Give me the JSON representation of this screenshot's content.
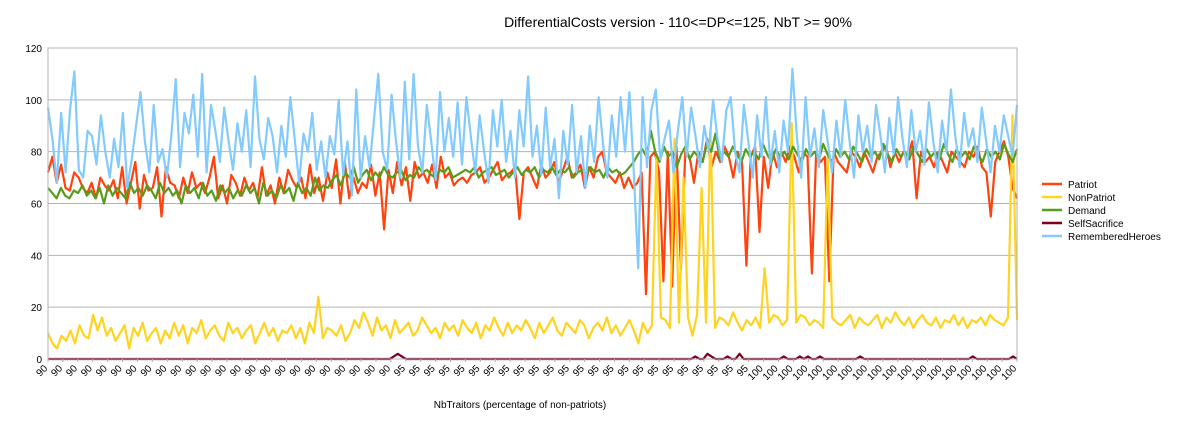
{
  "chart_data": {
    "type": "line",
    "title": "DifferentialCosts version - 110<=DP<=125, NbT >= 90%",
    "xlabel": "NbTraitors (percentage of non-patriots)",
    "ylabel": "",
    "ylim": [
      0,
      120
    ],
    "yticks": [
      0,
      20,
      40,
      60,
      80,
      100,
      120
    ],
    "grid": true,
    "legend_position": "right",
    "x_tick_labels": [
      "90",
      "90",
      "90",
      "90",
      "90",
      "90",
      "90",
      "90",
      "90",
      "90",
      "90",
      "90",
      "90",
      "90",
      "90",
      "90",
      "90",
      "90",
      "90",
      "90",
      "90",
      "90",
      "90",
      "90",
      "95",
      "95",
      "95",
      "95",
      "95",
      "95",
      "95",
      "95",
      "95",
      "95",
      "95",
      "95",
      "95",
      "95",
      "95",
      "95",
      "95",
      "95",
      "95",
      "95",
      "95",
      "95",
      "95",
      "95",
      "100",
      "100",
      "100",
      "100",
      "100",
      "100",
      "100",
      "100",
      "100",
      "100",
      "100",
      "100",
      "100",
      "100",
      "100",
      "100",
      "100",
      "100"
    ],
    "x_range": [
      90,
      100
    ],
    "series": [
      {
        "name": "Patriot",
        "color": "#ff420e",
        "values": [
          72,
          78,
          68,
          75,
          66,
          65,
          72,
          70,
          66,
          64,
          68,
          62,
          70,
          67,
          65,
          69,
          62,
          74,
          60,
          68,
          76,
          58,
          71,
          65,
          66,
          74,
          55,
          74,
          68,
          67,
          62,
          70,
          64,
          72,
          66,
          68,
          64,
          70,
          78,
          62,
          67,
          60,
          71,
          68,
          63,
          70,
          65,
          68,
          62,
          74,
          63,
          67,
          60,
          70,
          64,
          73,
          69,
          66,
          70,
          62,
          75,
          64,
          70,
          61,
          72,
          66,
          77,
          60,
          76,
          62,
          70,
          64,
          68,
          66,
          75,
          63,
          72,
          50,
          73,
          64,
          76,
          67,
          74,
          61,
          76,
          70,
          72,
          68,
          75,
          66,
          78,
          70,
          72,
          67,
          69,
          70,
          68,
          71,
          72,
          74,
          68,
          70,
          73,
          76,
          69,
          71,
          72,
          74,
          54,
          72,
          74,
          70,
          66,
          75,
          70,
          72,
          76,
          68,
          73,
          78,
          70,
          72,
          75,
          66,
          74,
          70,
          78,
          80,
          72,
          70,
          68,
          72,
          66,
          70,
          66,
          68,
          72,
          25,
          78,
          80,
          72,
          30,
          80,
          28,
          82,
          35,
          80,
          78,
          68,
          80,
          76,
          85,
          74,
          80,
          76,
          82,
          78,
          70,
          80,
          76,
          36,
          78,
          82,
          49,
          78,
          66,
          80,
          74,
          80,
          76,
          82,
          78,
          72,
          80,
          78,
          33,
          80,
          76,
          78,
          30,
          80,
          76,
          74,
          72,
          80,
          78,
          74,
          80,
          76,
          72,
          78,
          80,
          82,
          74,
          80,
          76,
          80,
          78,
          84,
          62,
          80,
          76,
          78,
          74,
          80,
          76,
          72,
          80,
          78,
          76,
          74,
          80,
          78,
          82,
          74,
          72,
          55,
          76,
          80,
          84,
          78,
          66,
          62
        ],
        "note": "approximate"
      },
      {
        "name": "NonPatriot",
        "color": "#ffd320",
        "values": [
          10,
          6,
          4,
          9,
          7,
          11,
          6,
          13,
          9,
          8,
          17,
          11,
          16,
          9,
          12,
          7,
          10,
          13,
          4,
          12,
          9,
          14,
          7,
          10,
          12,
          6,
          11,
          8,
          14,
          9,
          13,
          6,
          12,
          10,
          15,
          8,
          11,
          13,
          9,
          7,
          14,
          10,
          12,
          8,
          11,
          13,
          6,
          10,
          14,
          9,
          12,
          7,
          11,
          10,
          13,
          8,
          12,
          6,
          14,
          10,
          24,
          8,
          12,
          11,
          9,
          13,
          7,
          10,
          15,
          12,
          18,
          14,
          9,
          16,
          11,
          13,
          8,
          15,
          10,
          12,
          14,
          9,
          11,
          16,
          13,
          10,
          12,
          8,
          14,
          11,
          13,
          9,
          15,
          12,
          10,
          14,
          8,
          13,
          11,
          16,
          12,
          9,
          14,
          10,
          13,
          11,
          15,
          12,
          8,
          14,
          10,
          13,
          16,
          11,
          9,
          14,
          12,
          10,
          15,
          13,
          8,
          12,
          14,
          11,
          16,
          10,
          13,
          9,
          12,
          15,
          11,
          6,
          14,
          10,
          13,
          78,
          16,
          15,
          12,
          85,
          14,
          70,
          16,
          9,
          17,
          66,
          14,
          89,
          12,
          16,
          15,
          13,
          18,
          14,
          11,
          15,
          13,
          16,
          12,
          35,
          14,
          17,
          16,
          13,
          15,
          91,
          14,
          17,
          16,
          13,
          15,
          14,
          12,
          78,
          16,
          14,
          13,
          15,
          17,
          12,
          16,
          14,
          13,
          15,
          17,
          12,
          16,
          14,
          18,
          15,
          13,
          16,
          12,
          15,
          17,
          14,
          13,
          16,
          12,
          15,
          14,
          17,
          13,
          16,
          12,
          15,
          14,
          16,
          13,
          17,
          15,
          14,
          13,
          16,
          94,
          15
        ],
        "note": "approximate"
      },
      {
        "name": "Demand",
        "color": "#579d1c",
        "values": [
          66,
          64,
          62,
          66,
          63,
          62,
          65,
          64,
          67,
          63,
          65,
          62,
          66,
          60,
          67,
          63,
          66,
          64,
          62,
          68,
          64,
          66,
          63,
          67,
          65,
          62,
          68,
          64,
          66,
          63,
          65,
          60,
          67,
          64,
          66,
          62,
          68,
          63,
          65,
          61,
          67,
          64,
          66,
          62,
          65,
          63,
          67,
          64,
          66,
          60,
          68,
          63,
          65,
          62,
          67,
          64,
          66,
          61,
          68,
          64,
          66,
          63,
          70,
          65,
          67,
          66,
          69,
          71,
          67,
          72,
          70,
          74,
          68,
          71,
          73,
          69,
          72,
          70,
          74,
          71,
          70,
          72,
          73,
          69,
          71,
          70,
          74,
          72,
          73,
          71,
          70,
          73,
          72,
          74,
          70,
          71,
          72,
          73,
          72,
          74,
          70,
          72,
          73,
          74,
          71,
          72,
          73,
          70,
          72,
          74,
          71,
          73,
          72,
          74,
          70,
          73,
          72,
          74,
          71,
          73,
          72,
          74,
          70,
          72,
          73,
          71,
          74,
          72,
          73,
          70,
          74,
          72,
          73,
          71,
          72,
          74,
          76,
          79,
          81,
          78,
          88,
          80,
          76,
          82,
          78,
          80,
          74,
          79,
          82,
          77,
          80,
          78,
          76,
          83,
          80,
          87,
          77,
          80,
          78,
          82,
          79,
          76,
          81,
          78,
          80,
          77,
          83,
          79,
          76,
          81,
          78,
          80,
          77,
          82,
          79,
          76,
          81,
          78,
          80,
          77,
          83,
          79,
          76,
          81,
          78,
          80,
          77,
          82,
          79,
          76,
          81,
          78,
          80,
          77,
          83,
          79,
          76,
          81,
          78,
          80,
          77,
          82,
          79,
          76,
          81,
          78,
          80,
          77,
          83,
          79,
          76,
          81,
          78,
          80,
          77,
          82,
          79,
          76,
          81,
          78,
          80,
          77,
          83,
          79,
          76,
          81
        ],
        "note": "approximate"
      },
      {
        "name": "SelfSacrifice",
        "color": "#7e0021",
        "values": [
          0,
          0,
          0,
          0,
          0,
          0,
          0,
          0,
          0,
          0,
          0,
          0,
          0,
          0,
          0,
          0,
          0,
          0,
          0,
          0,
          0,
          0,
          0,
          0,
          0,
          0,
          0,
          0,
          0,
          0,
          0,
          0,
          0,
          0,
          0,
          0,
          0,
          0,
          0,
          0,
          0,
          0,
          0,
          0,
          0,
          0,
          0,
          0,
          0,
          0,
          0,
          0,
          0,
          0,
          0,
          0,
          0,
          0,
          0,
          0,
          0,
          0,
          0,
          0,
          0,
          0,
          0,
          0,
          0,
          0,
          0,
          0,
          0,
          0,
          0,
          0,
          0,
          0,
          0,
          0,
          0,
          0,
          0,
          0,
          0,
          0,
          1,
          2,
          1,
          0,
          0,
          0,
          0,
          0,
          0,
          0,
          0,
          0,
          0,
          0,
          0,
          0,
          0,
          0,
          0,
          0,
          0,
          0,
          0,
          0,
          0,
          0,
          0,
          0,
          0,
          0,
          0,
          0,
          0,
          0,
          0,
          0,
          0,
          0,
          0,
          0,
          0,
          0,
          0,
          0,
          0,
          0,
          0,
          0,
          0,
          0,
          0,
          0,
          0,
          0,
          0,
          0,
          0,
          0,
          0,
          0,
          0,
          0,
          0,
          0,
          0,
          0,
          0,
          0,
          0,
          0,
          0,
          0,
          0,
          0,
          0,
          1,
          0,
          0,
          2,
          1,
          0,
          0,
          0,
          1,
          0,
          0,
          2,
          0,
          0,
          0,
          0,
          0,
          0,
          0,
          0,
          0,
          0,
          1,
          0,
          0,
          0,
          1,
          0,
          1,
          0,
          0,
          1,
          0,
          0,
          0,
          0,
          0,
          0,
          0,
          0,
          0,
          1,
          0,
          0,
          0,
          0,
          0,
          0,
          0,
          0,
          0,
          0,
          0,
          0,
          0,
          0,
          0,
          0,
          0,
          0,
          0,
          0,
          0,
          0,
          0,
          0,
          0,
          0,
          0,
          1,
          0,
          0,
          0,
          0,
          0,
          0,
          0,
          0,
          0,
          1,
          0
        ],
        "note": "approximate"
      },
      {
        "name": "RememberedHeroes",
        "color": "#83caff",
        "values": [
          97,
          85,
          68,
          95,
          72,
          96,
          111,
          73,
          70,
          88,
          86,
          75,
          94,
          80,
          70,
          85,
          74,
          95,
          66,
          77,
          90,
          103,
          84,
          72,
          98,
          76,
          81,
          70,
          86,
          108,
          74,
          95,
          87,
          102,
          78,
          110,
          72,
          98,
          88,
          76,
          97,
          84,
          73,
          91,
          80,
          96,
          74,
          109,
          85,
          77,
          93,
          86,
          72,
          90,
          78,
          101,
          85,
          68,
          87,
          80,
          95,
          73,
          84,
          70,
          86,
          79,
          100,
          71,
          84,
          63,
          104,
          70,
          86,
          74,
          92,
          110,
          80,
          73,
          102,
          84,
          70,
          107,
          77,
          110,
          82,
          72,
          98,
          84,
          69,
          103,
          80,
          93,
          78,
          99,
          75,
          101,
          86,
          72,
          94,
          80,
          68,
          96,
          82,
          100,
          76,
          88,
          70,
          96,
          82,
          109,
          78,
          90,
          71,
          97,
          74,
          85,
          62,
          88,
          75,
          98,
          72,
          86,
          66,
          90,
          76,
          101,
          83,
          70,
          94,
          78,
          101,
          80,
          103,
          72,
          35,
          101,
          74,
          96,
          104,
          77,
          85,
          92,
          72,
          88,
          101,
          78,
          97,
          86,
          74,
          90,
          80,
          100,
          85,
          76,
          96,
          101,
          80,
          72,
          98,
          84,
          70,
          94,
          78,
          101,
          75,
          88,
          72,
          92,
          80,
          112,
          86,
          70,
          101,
          78,
          89,
          74,
          96,
          84,
          72,
          92,
          78,
          100,
          84,
          70,
          94,
          80,
          90,
          76,
          98,
          86,
          72,
          93,
          79,
          101,
          85,
          74,
          96,
          80,
          88,
          75,
          99,
          84,
          72,
          92,
          80,
          104,
          86,
          74,
          95,
          82,
          89,
          76,
          97,
          84,
          72,
          90,
          80,
          94,
          86,
          78,
          98
        ],
        "note": "approximate"
      }
    ]
  }
}
